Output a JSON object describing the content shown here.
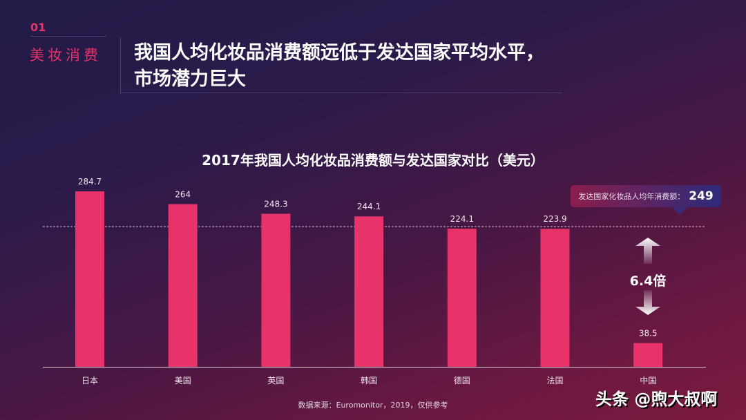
{
  "header": {
    "section_number": "01",
    "section_label": "美妆消费",
    "title_line1": "我国人均化妆品消费额远低于发达国家平均水平，",
    "title_line2": "市场潜力巨大"
  },
  "chart_data": {
    "type": "bar",
    "title": "2017年我国人均化妆品消费额与发达国家对比（美元）",
    "categories": [
      "日本",
      "美国",
      "英国",
      "韩国",
      "德国",
      "法国",
      "中国"
    ],
    "values": [
      284.7,
      264,
      248.3,
      244.1,
      224.1,
      223.9,
      38.5
    ],
    "value_labels": [
      "284.7",
      "264",
      "248.3",
      "244.1",
      "224.1",
      "223.9",
      "38.5"
    ],
    "bar_color": "#e8336a",
    "reference_line": {
      "label": "发达国家化妆品人均年消费额：",
      "value": "249"
    },
    "annotation": "6.4倍",
    "ylim": [
      0,
      300
    ]
  },
  "source": "数据来源：Euromonitor，2019，仅供参考",
  "watermark": "头条 @煦大叔啊"
}
